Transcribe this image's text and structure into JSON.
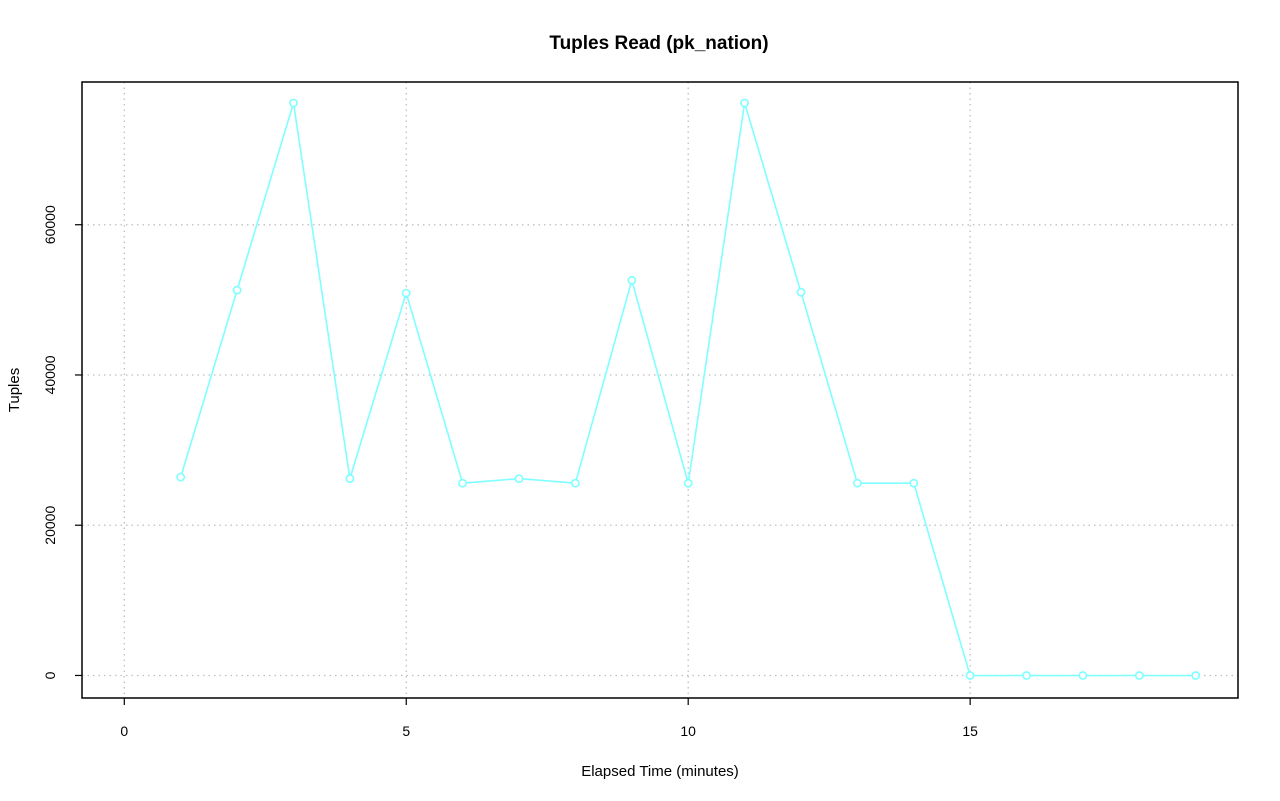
{
  "chart_data": {
    "type": "line",
    "title": "Tuples Read (pk_nation)",
    "xlabel": "Elapsed Time (minutes)",
    "ylabel": "Tuples",
    "xlim": [
      -0.75,
      19.75
    ],
    "ylim": [
      -3000,
      79000
    ],
    "x_ticks": [
      0,
      5,
      10,
      15
    ],
    "x_tick_labels": [
      "0",
      "5",
      "10",
      "15"
    ],
    "y_ticks": [
      0,
      20000,
      40000,
      60000
    ],
    "y_tick_labels": [
      "0",
      "20000",
      "40000",
      "60000"
    ],
    "grid": true,
    "color": "#7fffff",
    "series": [
      {
        "x": [
          1,
          2,
          3,
          4,
          5,
          6,
          7,
          8,
          9,
          10,
          11,
          12,
          13,
          14,
          15,
          16,
          17,
          18,
          19
        ],
        "values": [
          26400,
          51300,
          76200,
          26200,
          50900,
          25600,
          26200,
          25600,
          52600,
          25600,
          76200,
          51000,
          25600,
          25600,
          0,
          0,
          0,
          0,
          0
        ]
      }
    ]
  }
}
